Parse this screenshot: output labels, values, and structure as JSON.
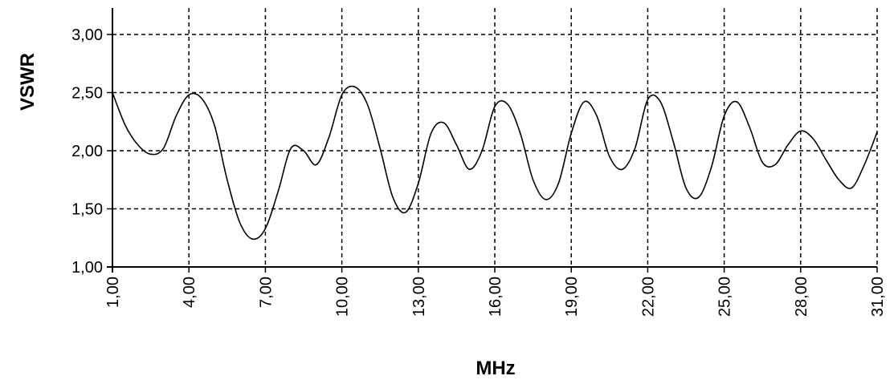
{
  "chart_data": {
    "type": "line",
    "xlabel": "MHz",
    "ylabel": "VSWR",
    "xlim": [
      1,
      31
    ],
    "ylim": [
      1,
      3
    ],
    "x_ticks": [
      1,
      4,
      7,
      10,
      13,
      16,
      19,
      22,
      25,
      28,
      31
    ],
    "y_ticks": [
      1,
      1.5,
      2,
      2.5,
      3
    ],
    "x_tick_labels": [
      "1,00",
      "4,00",
      "7,00",
      "10,00",
      "13,00",
      "16,00",
      "19,00",
      "22,00",
      "25,00",
      "28,00",
      "31,00"
    ],
    "y_tick_labels": [
      "1,00",
      "1,50",
      "2,00",
      "2,50",
      "3,00"
    ],
    "grid": true,
    "grid_style": "dashed",
    "line_color": "#000000",
    "x": [
      1.0,
      1.5,
      2.0,
      2.5,
      3.0,
      3.5,
      4.0,
      4.5,
      5.0,
      5.5,
      6.0,
      6.5,
      7.0,
      7.5,
      8.0,
      8.5,
      9.0,
      9.5,
      10.0,
      10.5,
      11.0,
      11.5,
      12.0,
      12.5,
      13.0,
      13.5,
      14.0,
      14.5,
      15.0,
      15.5,
      16.0,
      16.5,
      17.0,
      17.5,
      18.0,
      18.5,
      19.0,
      19.5,
      20.0,
      20.5,
      21.0,
      21.5,
      22.0,
      22.5,
      23.0,
      23.5,
      24.0,
      24.5,
      25.0,
      25.5,
      26.0,
      26.5,
      27.0,
      27.5,
      28.0,
      28.5,
      29.0,
      29.5,
      30.0,
      30.5,
      31.0
    ],
    "y": [
      2.5,
      2.22,
      2.05,
      1.97,
      2.02,
      2.3,
      2.48,
      2.45,
      2.22,
      1.75,
      1.38,
      1.24,
      1.33,
      1.65,
      2.02,
      2.0,
      1.88,
      2.12,
      2.48,
      2.55,
      2.4,
      2.02,
      1.6,
      1.47,
      1.72,
      2.15,
      2.24,
      2.05,
      1.84,
      2.0,
      2.38,
      2.4,
      2.15,
      1.75,
      1.58,
      1.72,
      2.15,
      2.42,
      2.3,
      1.95,
      1.84,
      2.02,
      2.44,
      2.42,
      2.08,
      1.68,
      1.6,
      1.86,
      2.3,
      2.42,
      2.2,
      1.9,
      1.88,
      2.05,
      2.17,
      2.1,
      1.92,
      1.75,
      1.68,
      1.88,
      2.16
    ]
  }
}
